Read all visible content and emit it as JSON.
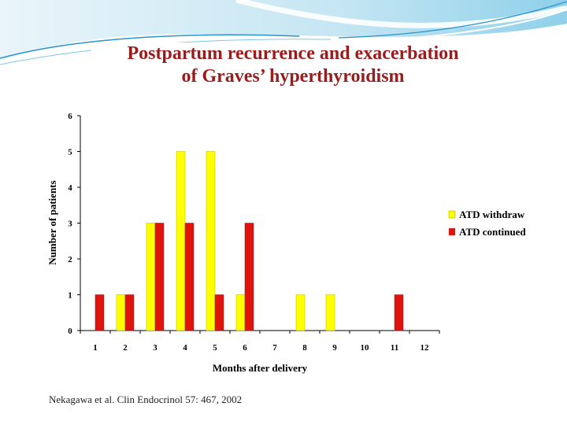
{
  "slide": {
    "title_line1": "Postpartum recurrence and exacerbation",
    "title_line2": "of Graves’ hyperthyroidism",
    "citation": "Nekagawa et al. Clin Endocrinol 57: 467, 2002"
  },
  "colors": {
    "title": "#9b1c1c",
    "banner_light": "#d9eef7",
    "banner_mid": "#7ec8e6",
    "banner_dark": "#2a93c9"
  },
  "chart_data": {
    "type": "bar",
    "title": "",
    "xlabel": "Months after delivery",
    "ylabel": "Number of patients",
    "categories": [
      "1",
      "2",
      "3",
      "4",
      "5",
      "6",
      "7",
      "8",
      "9",
      "10",
      "11",
      "12"
    ],
    "ylim": [
      0,
      6
    ],
    "yticks": [
      "0",
      "1",
      "2",
      "3",
      "4",
      "5",
      "6"
    ],
    "grid": false,
    "legend_position": "right",
    "series": [
      {
        "name": "ATD withdraw",
        "color": "#ffff00",
        "values": [
          0,
          1,
          3,
          5,
          5,
          1,
          0,
          1,
          1,
          0,
          0,
          0
        ]
      },
      {
        "name": "ATD continued",
        "color": "#e0140c",
        "values": [
          1,
          1,
          3,
          3,
          1,
          3,
          0,
          0,
          0,
          0,
          1,
          0
        ]
      }
    ]
  }
}
